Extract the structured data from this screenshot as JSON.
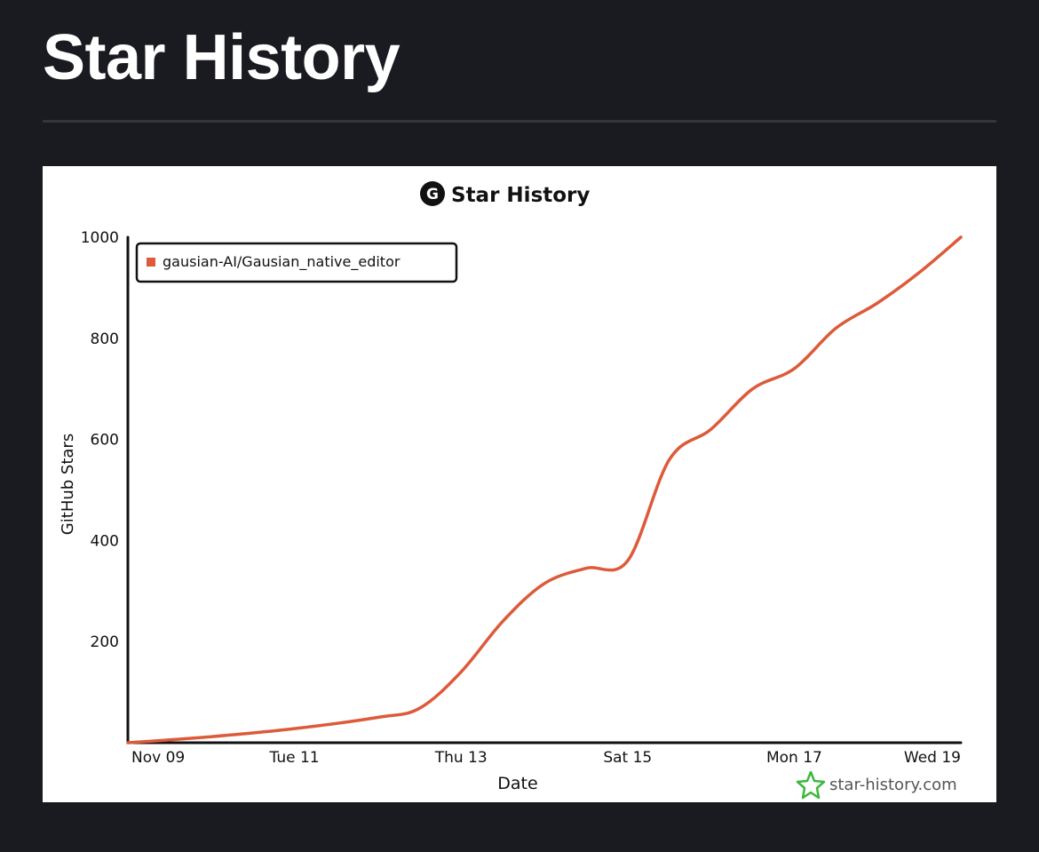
{
  "page": {
    "title": "Star History"
  },
  "chart_data": {
    "type": "line",
    "title": "Star History",
    "xlabel": "Date",
    "ylabel": "GitHub Stars",
    "x_tick_labels": [
      "Nov 09",
      "Tue 11",
      "Thu 13",
      "Sat 15",
      "Mon 17",
      "Wed 19"
    ],
    "y_ticks": [
      200,
      400,
      600,
      800,
      1000
    ],
    "y_tick_labels": [
      "200",
      "400",
      "600",
      "800",
      "1000"
    ],
    "xlim": [
      "2025-11-09",
      "2025-11-19"
    ],
    "ylim": [
      0,
      1000
    ],
    "legend_position": "top-left",
    "grid": false,
    "watermark": "star-history.com",
    "series": [
      {
        "name": "gausian-AI/Gausian_native_editor",
        "color": "#dd5a3a",
        "points": [
          [
            "2025-11-09",
            0
          ],
          [
            "2025-11-10",
            12
          ],
          [
            "2025-11-11",
            28
          ],
          [
            "2025-11-12",
            50
          ],
          [
            "2025-11-12T12:00",
            68
          ],
          [
            "2025-11-13",
            140
          ],
          [
            "2025-11-13T12:00",
            240
          ],
          [
            "2025-11-14",
            315
          ],
          [
            "2025-11-14T12:00",
            345
          ],
          [
            "2025-11-15",
            360
          ],
          [
            "2025-11-15T12:00",
            560
          ],
          [
            "2025-11-16",
            620
          ],
          [
            "2025-11-16T12:00",
            700
          ],
          [
            "2025-11-17",
            740
          ],
          [
            "2025-11-17T12:00",
            820
          ],
          [
            "2025-11-18",
            870
          ],
          [
            "2025-11-18T12:00",
            930
          ],
          [
            "2025-11-19",
            1000
          ]
        ]
      }
    ]
  }
}
